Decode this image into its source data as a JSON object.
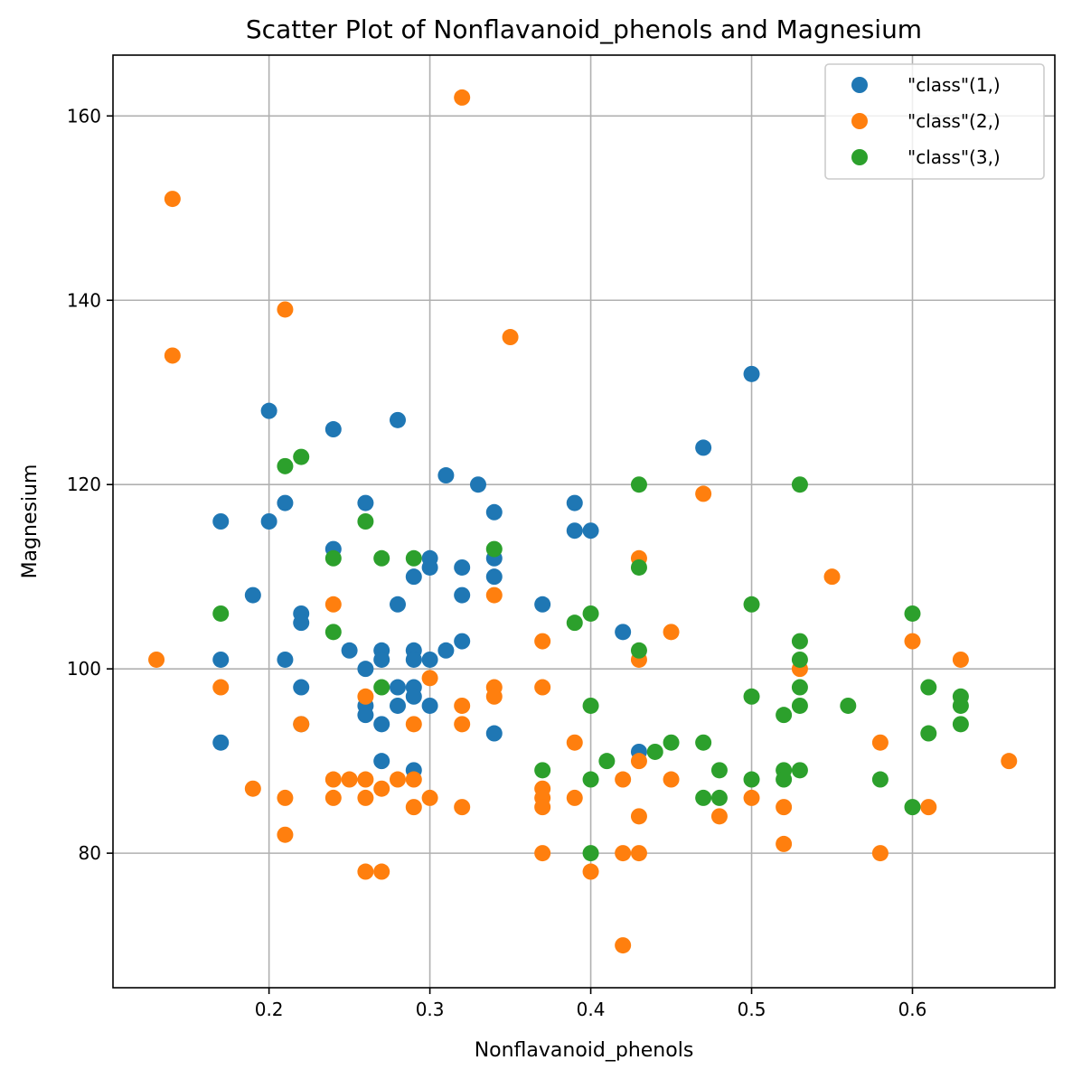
{
  "chart_data": {
    "type": "scatter",
    "title": "Scatter Plot of Nonflavanoid_phenols and Magnesium",
    "xlabel": "Nonflavanoid_phenols",
    "ylabel": "Magnesium",
    "xlim": [
      0.103,
      0.6885
    ],
    "ylim": [
      65.4,
      166.6
    ],
    "xticks": [
      0.2,
      0.3,
      0.4,
      0.5,
      0.6
    ],
    "xtick_labels": [
      "0.2",
      "0.3",
      "0.4",
      "0.5",
      "0.6"
    ],
    "yticks": [
      80,
      100,
      120,
      140,
      160
    ],
    "ytick_labels": [
      "80",
      "100",
      "120",
      "140",
      "160"
    ],
    "grid": true,
    "legend_position": "top-right",
    "series": [
      {
        "name": "\"class\"(1,)",
        "color": "#1f77b4",
        "points": [
          [
            0.2,
            128
          ],
          [
            0.24,
            126
          ],
          [
            0.28,
            127
          ],
          [
            0.5,
            132
          ],
          [
            0.47,
            124
          ],
          [
            0.31,
            121
          ],
          [
            0.33,
            120
          ],
          [
            0.21,
            118
          ],
          [
            0.26,
            118
          ],
          [
            0.39,
            118
          ],
          [
            0.17,
            116
          ],
          [
            0.2,
            116
          ],
          [
            0.34,
            117
          ],
          [
            0.39,
            115
          ],
          [
            0.4,
            115
          ],
          [
            0.24,
            113
          ],
          [
            0.34,
            112
          ],
          [
            0.3,
            112
          ],
          [
            0.3,
            111
          ],
          [
            0.32,
            111
          ],
          [
            0.29,
            110
          ],
          [
            0.34,
            110
          ],
          [
            0.19,
            108
          ],
          [
            0.32,
            108
          ],
          [
            0.28,
            107
          ],
          [
            0.37,
            107
          ],
          [
            0.22,
            106
          ],
          [
            0.22,
            105
          ],
          [
            0.42,
            104
          ],
          [
            0.32,
            103
          ],
          [
            0.25,
            102
          ],
          [
            0.27,
            102
          ],
          [
            0.29,
            102
          ],
          [
            0.31,
            102
          ],
          [
            0.17,
            101
          ],
          [
            0.21,
            101
          ],
          [
            0.27,
            101
          ],
          [
            0.29,
            101
          ],
          [
            0.3,
            101
          ],
          [
            0.26,
            100
          ],
          [
            0.22,
            98
          ],
          [
            0.28,
            98
          ],
          [
            0.29,
            98
          ],
          [
            0.29,
            97
          ],
          [
            0.26,
            96
          ],
          [
            0.28,
            96
          ],
          [
            0.3,
            96
          ],
          [
            0.26,
            95
          ],
          [
            0.27,
            94
          ],
          [
            0.22,
            94
          ],
          [
            0.34,
            93
          ],
          [
            0.17,
            92
          ],
          [
            0.43,
            91
          ],
          [
            0.27,
            90
          ],
          [
            0.29,
            89
          ]
        ]
      },
      {
        "name": "\"class\"(2,)",
        "color": "#ff7f0e",
        "points": [
          [
            0.32,
            162
          ],
          [
            0.14,
            151
          ],
          [
            0.21,
            139
          ],
          [
            0.35,
            136
          ],
          [
            0.14,
            134
          ],
          [
            0.47,
            119
          ],
          [
            0.43,
            112
          ],
          [
            0.55,
            110
          ],
          [
            0.34,
            108
          ],
          [
            0.24,
            107
          ],
          [
            0.45,
            104
          ],
          [
            0.37,
            103
          ],
          [
            0.6,
            103
          ],
          [
            0.13,
            101
          ],
          [
            0.43,
            101
          ],
          [
            0.63,
            101
          ],
          [
            0.53,
            100
          ],
          [
            0.3,
            99
          ],
          [
            0.17,
            98
          ],
          [
            0.34,
            98
          ],
          [
            0.37,
            98
          ],
          [
            0.26,
            97
          ],
          [
            0.34,
            97
          ],
          [
            0.32,
            96
          ],
          [
            0.22,
            94
          ],
          [
            0.29,
            94
          ],
          [
            0.32,
            94
          ],
          [
            0.39,
            92
          ],
          [
            0.58,
            92
          ],
          [
            0.43,
            90
          ],
          [
            0.66,
            90
          ],
          [
            0.24,
            88
          ],
          [
            0.25,
            88
          ],
          [
            0.26,
            88
          ],
          [
            0.28,
            88
          ],
          [
            0.29,
            88
          ],
          [
            0.42,
            88
          ],
          [
            0.45,
            88
          ],
          [
            0.19,
            87
          ],
          [
            0.27,
            87
          ],
          [
            0.37,
            87
          ],
          [
            0.21,
            86
          ],
          [
            0.24,
            86
          ],
          [
            0.26,
            86
          ],
          [
            0.3,
            86
          ],
          [
            0.37,
            86
          ],
          [
            0.39,
            86
          ],
          [
            0.5,
            86
          ],
          [
            0.29,
            85
          ],
          [
            0.32,
            85
          ],
          [
            0.37,
            85
          ],
          [
            0.52,
            85
          ],
          [
            0.61,
            85
          ],
          [
            0.43,
            84
          ],
          [
            0.48,
            84
          ],
          [
            0.21,
            82
          ],
          [
            0.52,
            81
          ],
          [
            0.37,
            80
          ],
          [
            0.42,
            80
          ],
          [
            0.43,
            80
          ],
          [
            0.58,
            80
          ],
          [
            0.26,
            78
          ],
          [
            0.27,
            78
          ],
          [
            0.4,
            78
          ],
          [
            0.42,
            70
          ]
        ]
      },
      {
        "name": "\"class\"(3,)",
        "color": "#2ca02c",
        "points": [
          [
            0.22,
            123
          ],
          [
            0.21,
            122
          ],
          [
            0.43,
            120
          ],
          [
            0.53,
            120
          ],
          [
            0.26,
            116
          ],
          [
            0.34,
            113
          ],
          [
            0.24,
            112
          ],
          [
            0.27,
            112
          ],
          [
            0.29,
            112
          ],
          [
            0.43,
            111
          ],
          [
            0.5,
            107
          ],
          [
            0.17,
            106
          ],
          [
            0.4,
            106
          ],
          [
            0.6,
            106
          ],
          [
            0.39,
            105
          ],
          [
            0.24,
            104
          ],
          [
            0.53,
            103
          ],
          [
            0.43,
            102
          ],
          [
            0.53,
            101
          ],
          [
            0.27,
            98
          ],
          [
            0.53,
            98
          ],
          [
            0.61,
            98
          ],
          [
            0.5,
            97
          ],
          [
            0.63,
            97
          ],
          [
            0.4,
            96
          ],
          [
            0.53,
            96
          ],
          [
            0.56,
            96
          ],
          [
            0.63,
            96
          ],
          [
            0.52,
            95
          ],
          [
            0.63,
            94
          ],
          [
            0.61,
            93
          ],
          [
            0.45,
            92
          ],
          [
            0.47,
            92
          ],
          [
            0.44,
            91
          ],
          [
            0.41,
            90
          ],
          [
            0.37,
            89
          ],
          [
            0.48,
            89
          ],
          [
            0.52,
            89
          ],
          [
            0.53,
            89
          ],
          [
            0.4,
            88
          ],
          [
            0.5,
            88
          ],
          [
            0.52,
            88
          ],
          [
            0.58,
            88
          ],
          [
            0.47,
            86
          ],
          [
            0.48,
            86
          ],
          [
            0.6,
            85
          ],
          [
            0.4,
            80
          ]
        ]
      }
    ]
  }
}
